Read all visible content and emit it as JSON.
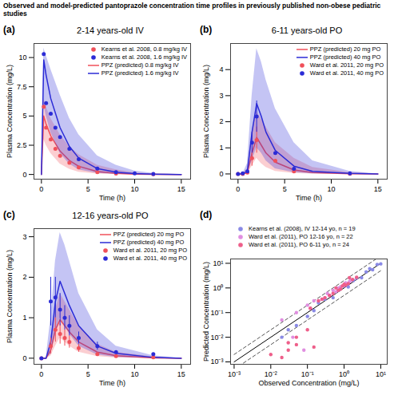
{
  "title": "Observed and model-predicted pantoprazole concentration time profiles in previously published non-obese pediatric studies",
  "chart_data": [
    {
      "type": "line",
      "panel_label": "(a)",
      "title": "2-14 years-old IV",
      "xlabel": "Time (h)",
      "ylabel": "Plasma Concentration (mg/L)",
      "xlim": [
        -0.8,
        16
      ],
      "xticks": [
        0,
        5,
        10,
        15
      ],
      "ylim": [
        -0.4,
        11.2
      ],
      "yticks": [
        0,
        2.5,
        5,
        7.5,
        10
      ],
      "legend": "top-right",
      "series": [
        {
          "name": "Kearns et al. 2008, 0.8 mg/kg IV",
          "type": "scatter",
          "marker": "circle",
          "color": "#f0505a",
          "x": [
            0.25,
            0.5,
            1,
            1.5,
            2,
            3,
            4,
            6,
            8,
            12
          ],
          "values": [
            5.8,
            4.0,
            3.0,
            2.2,
            1.6,
            1.0,
            0.6,
            0.2,
            0.08,
            0.02
          ]
        },
        {
          "name": "Kearns et al. 2008, 1.6 mg/kg IV",
          "type": "scatter",
          "marker": "circle",
          "color": "#2b2bd6",
          "x": [
            0.25,
            0.5,
            1,
            1.5,
            2,
            3,
            4,
            6,
            8,
            10,
            12
          ],
          "values": [
            10.3,
            6.1,
            5.2,
            4.0,
            3.2,
            2.2,
            1.3,
            0.5,
            0.2,
            0.1,
            0.05
          ]
        },
        {
          "name": "PPZ (predicted) 0.8 mg/kg IV",
          "type": "line",
          "color": "#f0505a",
          "x": [
            0,
            0.25,
            0.5,
            1,
            2,
            3,
            4,
            6,
            8,
            10,
            12,
            15
          ],
          "values": [
            0,
            5.0,
            4.3,
            3.3,
            2.0,
            1.2,
            0.7,
            0.25,
            0.1,
            0.03,
            0.01,
            0
          ],
          "lower": [
            0,
            3.0,
            2.5,
            1.8,
            0.9,
            0.45,
            0.2,
            0.05,
            0.01,
            0,
            0,
            0
          ],
          "upper": [
            0,
            6.5,
            5.8,
            4.8,
            3.4,
            2.4,
            1.7,
            0.8,
            0.4,
            0.15,
            0.05,
            0
          ]
        },
        {
          "name": "PPZ (predicted) 1.6 mg/kg IV",
          "type": "line",
          "color": "#2b2bd6",
          "x": [
            0,
            0.25,
            0.5,
            1,
            2,
            3,
            4,
            6,
            8,
            10,
            12,
            15
          ],
          "values": [
            0,
            9.8,
            8.5,
            6.5,
            4.0,
            2.4,
            1.4,
            0.5,
            0.2,
            0.07,
            0.02,
            0
          ],
          "lower": [
            0,
            6.0,
            5.0,
            3.6,
            1.8,
            0.9,
            0.4,
            0.1,
            0.02,
            0,
            0,
            0
          ],
          "upper": [
            0,
            10.8,
            10.2,
            9.0,
            6.8,
            4.8,
            3.4,
            1.6,
            0.8,
            0.3,
            0.1,
            0
          ]
        }
      ]
    },
    {
      "type": "line",
      "panel_label": "(b)",
      "title": "6-11 years-old PO",
      "xlabel": "Time (h)",
      "ylabel": "Plasma Concentration (mg/L)",
      "xlim": [
        -0.8,
        16
      ],
      "xticks": [
        0,
        5,
        10,
        15
      ],
      "ylim": [
        -0.2,
        5
      ],
      "yticks": [
        0,
        1,
        2,
        3,
        4
      ],
      "legend": "top-right",
      "series": [
        {
          "name": "PPZ (predicted) 20 mg PO",
          "type": "line",
          "color": "#f0505a",
          "x": [
            0,
            0.5,
            1,
            1.5,
            2,
            2.5,
            3,
            4,
            6,
            8,
            12,
            15
          ],
          "values": [
            0,
            0,
            0.05,
            0.8,
            1.4,
            1.1,
            0.8,
            0.45,
            0.15,
            0.05,
            0.01,
            0
          ],
          "lower": [
            0,
            0,
            0,
            0.3,
            0.6,
            0.4,
            0.25,
            0.1,
            0.02,
            0,
            0,
            0
          ],
          "upper": [
            0,
            0,
            0.2,
            1.6,
            2.4,
            2.1,
            1.8,
            1.2,
            0.6,
            0.25,
            0.05,
            0
          ]
        },
        {
          "name": "PPZ (predicted) 40 mg PO",
          "type": "line",
          "color": "#2b2bd6",
          "x": [
            0,
            0.5,
            1,
            1.5,
            2,
            2.5,
            3,
            4,
            6,
            8,
            12,
            15
          ],
          "values": [
            0,
            0,
            0.1,
            1.6,
            2.7,
            2.2,
            1.6,
            0.9,
            0.3,
            0.1,
            0.02,
            0
          ],
          "lower": [
            0,
            0,
            0,
            0.5,
            1.0,
            0.8,
            0.5,
            0.2,
            0.05,
            0.01,
            0,
            0
          ],
          "upper": [
            0,
            0,
            0.4,
            3.0,
            4.8,
            4.3,
            3.6,
            2.5,
            1.2,
            0.5,
            0.1,
            0
          ]
        },
        {
          "name": "Ward et al. 2011, 20 mg PO",
          "type": "scatter",
          "marker": "circle",
          "color": "#f0505a",
          "x": [
            0,
            0.5,
            1,
            1.5,
            2,
            4,
            6,
            12
          ],
          "values": [
            0,
            0,
            0.05,
            0.6,
            1.3,
            0.5,
            0.1,
            0.01
          ],
          "error": [
            null,
            null,
            null,
            0.3,
            0.5,
            null,
            null,
            null
          ]
        },
        {
          "name": "Ward et al. 2011, 40 mg PO",
          "type": "scatter",
          "marker": "circle",
          "color": "#2b2bd6",
          "x": [
            0,
            0.5,
            1,
            1.5,
            2,
            4,
            6,
            12
          ],
          "values": [
            0,
            0.02,
            0.1,
            1.2,
            2.2,
            0.8,
            0.2,
            0.02
          ],
          "error": [
            null,
            null,
            null,
            0.4,
            0.6,
            null,
            null,
            null
          ]
        }
      ]
    },
    {
      "type": "line",
      "panel_label": "(c)",
      "title": "12-16 years-old PO",
      "xlabel": "Time (h)",
      "ylabel": "Plasma Concentration (mg/L)",
      "xlim": [
        -0.8,
        16
      ],
      "xticks": [
        0,
        5,
        10,
        15
      ],
      "ylim": [
        -0.15,
        3.2
      ],
      "yticks": [
        0,
        1,
        2,
        3
      ],
      "legend": "top-right",
      "series": [
        {
          "name": "PPZ (predicted) 20 mg PO",
          "type": "line",
          "color": "#f0505a",
          "x": [
            0,
            0.5,
            1,
            1.5,
            2,
            2.5,
            3,
            4,
            6,
            8,
            12,
            15
          ],
          "values": [
            0,
            0,
            0.2,
            0.7,
            0.95,
            0.8,
            0.65,
            0.4,
            0.15,
            0.06,
            0.01,
            0
          ],
          "lower": [
            0,
            0,
            0.05,
            0.3,
            0.5,
            0.4,
            0.3,
            0.15,
            0.04,
            0.01,
            0,
            0
          ],
          "upper": [
            0,
            0,
            0.5,
            1.2,
            1.6,
            1.4,
            1.2,
            0.8,
            0.35,
            0.15,
            0.03,
            0
          ]
        },
        {
          "name": "PPZ (predicted) 40 mg PO",
          "type": "line",
          "color": "#2b2bd6",
          "x": [
            0,
            0.5,
            1,
            1.5,
            2,
            2.5,
            3,
            4,
            6,
            8,
            12,
            15
          ],
          "values": [
            0,
            0,
            0.4,
            1.4,
            1.9,
            1.6,
            1.3,
            0.8,
            0.3,
            0.12,
            0.02,
            0
          ],
          "lower": [
            0,
            0,
            0.1,
            0.6,
            1.0,
            0.8,
            0.6,
            0.3,
            0.08,
            0.02,
            0,
            0
          ],
          "upper": [
            0,
            0,
            1.0,
            2.4,
            3.1,
            2.8,
            2.4,
            1.6,
            0.7,
            0.3,
            0.06,
            0
          ]
        },
        {
          "name": "Ward et al. 2011, 20 mg PO",
          "type": "scatter",
          "marker": "circle",
          "color": "#f0505a",
          "x": [
            0,
            1,
            1.5,
            2,
            2.5,
            3,
            4,
            6,
            8,
            12
          ],
          "values": [
            0,
            0.3,
            0.7,
            0.6,
            0.5,
            0.4,
            0.25,
            0.1,
            0.05,
            0.02
          ],
          "error": [
            null,
            0.2,
            0.3,
            0.25,
            0.2,
            0.15,
            0.1,
            null,
            null,
            null
          ]
        },
        {
          "name": "Ward et al. 2011, 40 mg PO",
          "type": "scatter",
          "marker": "circle",
          "color": "#2b2bd6",
          "x": [
            0,
            1,
            1.5,
            2,
            2.5,
            3,
            4,
            6,
            8,
            12
          ],
          "values": [
            0,
            1.4,
            1.5,
            1.2,
            1.0,
            0.8,
            0.5,
            0.3,
            0.15,
            0.1
          ],
          "error": [
            null,
            0.6,
            0.5,
            0.4,
            0.3,
            0.25,
            0.15,
            0.1,
            null,
            null
          ]
        }
      ]
    },
    {
      "type": "scatter",
      "panel_label": "(d)",
      "log": true,
      "xlabel": "Observed Concentration (mg/L)",
      "ylabel": "Predicted Concentration (mg/L)",
      "xlim": [
        0.0008,
        15
      ],
      "xticks": [
        {
          "value": 0.001,
          "label": "10⁻³"
        },
        {
          "value": 0.01,
          "label": "10⁻²"
        },
        {
          "value": 0.1,
          "label": "10⁻¹"
        },
        {
          "value": 1,
          "label": "10⁰"
        },
        {
          "value": 10,
          "label": "10¹"
        }
      ],
      "ylim": [
        0.0008,
        15
      ],
      "yticks": [
        {
          "value": 0.001,
          "label": "10⁻³"
        },
        {
          "value": 0.01,
          "label": "10⁻²"
        },
        {
          "value": 0.1,
          "label": "10⁻¹"
        },
        {
          "value": 1,
          "label": "10⁰"
        },
        {
          "value": 10,
          "label": "10¹"
        }
      ],
      "legend": "top-left",
      "reference_lines": [
        {
          "line_style": "solid",
          "color": "#000000",
          "x": [
            0.001,
            10
          ],
          "values": [
            0.001,
            10
          ]
        },
        {
          "line_style": "dashed",
          "color": "#555555",
          "x": [
            0.001,
            10
          ],
          "values": [
            0.002,
            20
          ]
        },
        {
          "line_style": "dashed",
          "color": "#555555",
          "x": [
            0.001,
            10
          ],
          "values": [
            0.0005,
            5
          ]
        }
      ],
      "series": [
        {
          "name": "Kearns et al. (2008), IV 12-14 yo, n = 19",
          "type": "scatter",
          "marker": "circle",
          "color": "#8a8ae6",
          "x": [
            0.05,
            0.1,
            0.15,
            0.2,
            0.3,
            0.5,
            0.7,
            1,
            1.3,
            1.8,
            2.2,
            3,
            4,
            5,
            6,
            8,
            10,
            0.02,
            0.03
          ],
          "values": [
            0.03,
            0.07,
            0.12,
            0.25,
            0.35,
            0.4,
            0.8,
            1.2,
            1.1,
            2.0,
            2.5,
            2.6,
            4.5,
            6,
            5.5,
            9,
            9.5,
            0.01,
            0.02
          ]
        },
        {
          "name": "Ward et al. (2011), PO 12-16 yo, n = 22",
          "type": "scatter",
          "marker": "circle",
          "color": "#e08ee0",
          "x": [
            0.02,
            0.05,
            0.1,
            0.12,
            0.2,
            0.3,
            0.4,
            0.5,
            0.6,
            0.8,
            1,
            1.2,
            1.4,
            1.5,
            0.15,
            0.25,
            0.35,
            0.7,
            0.9,
            1.1,
            0.08,
            0.04
          ],
          "values": [
            0.05,
            0.1,
            0.2,
            0.15,
            0.3,
            0.4,
            0.5,
            0.8,
            0.7,
            1.1,
            1.3,
            1.5,
            1.8,
            2,
            0.3,
            0.35,
            0.6,
            1.0,
            1.2,
            1.6,
            0.003,
            0.01
          ]
        },
        {
          "name": "Ward et al. (2011), PO 6-11 yo, n = 24",
          "type": "scatter",
          "marker": "circle",
          "color": "#ee5f8a",
          "x": [
            0.02,
            0.03,
            0.05,
            0.05,
            0.1,
            0.2,
            0.3,
            0.5,
            0.6,
            0.8,
            1,
            1.3,
            1.4,
            2.2,
            0.15,
            0.4,
            0.7,
            0.9,
            0.01,
            0.03,
            0.12,
            0.25,
            1.1,
            1.7
          ],
          "values": [
            0.0015,
            0.003,
            0.005,
            0.01,
            0.02,
            0.3,
            0.4,
            0.6,
            1,
            0.9,
            1.4,
            1.5,
            2.6,
            2.7,
            0.004,
            0.5,
            0.8,
            1.2,
            0.002,
            0.006,
            0.15,
            0.35,
            1.3,
            2.2
          ]
        }
      ]
    }
  ]
}
